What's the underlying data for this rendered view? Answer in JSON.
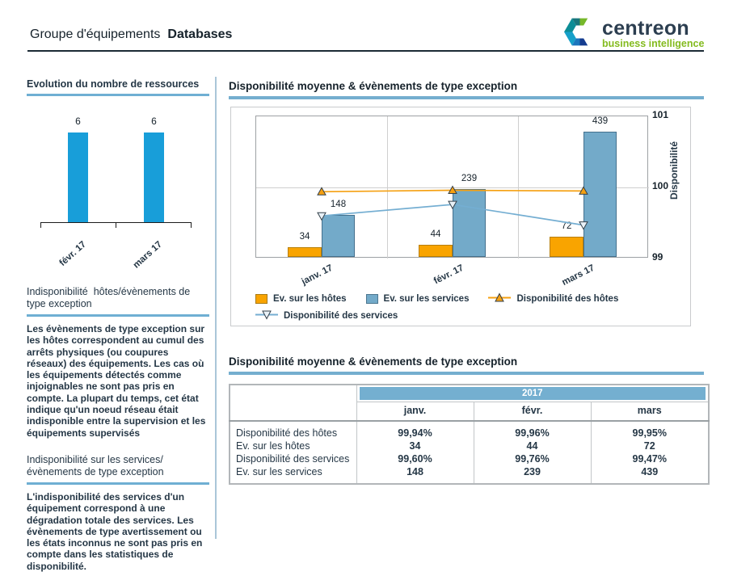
{
  "header": {
    "title_prefix": "Groupe d'équipements",
    "title_emphasis": "Databases",
    "logo": {
      "brand": "centreon",
      "tagline": "business intelligence"
    }
  },
  "colors": {
    "accent_underline": "#74aecf",
    "title_text": "#253746",
    "header_rule": "#1b2a35",
    "column_separator": "#aac6d8",
    "sidebar_bar_blue": "#189ed9",
    "bar_orange": "#f9a400",
    "bar_orange_border": "#b87e00",
    "bar_steel_blue": "#73aac9",
    "bar_steel_blue_border": "#44708d",
    "line_orange": "#f5a011",
    "line_blue": "#74aed2",
    "table_header_bg": "#74afd0",
    "table_header_text": "#ffffff",
    "logo_green": "#84bb1f",
    "logo_dark": "#2c3e50"
  },
  "sidebar": {
    "resources_title": "Evolution du nombre de ressources",
    "sections": [
      {
        "title": "Indisponibilité  hôtes/évènements de type exception",
        "body": "Les évènements de type exception sur les hôtes correspondent au cumul des arrêts physiques (ou coupures réseaux) des équipements. Les cas où les équipements détectés comme injoignables ne sont pas pris en compte. La plupart du temps, cet état indique qu'un noeud réseau était indisponible entre la supervision et les équipements supervisés"
      },
      {
        "title": "Indisponibilité sur les services/ évènements de type exception",
        "body": "L'indisponibilité des services d'un équipement correspond à une dégradation totale des services. Les évènements de type avertissement ou les états inconnus ne sont pas pris en compte dans les statistiques de disponibilité."
      }
    ]
  },
  "main": {
    "chart_title": "Disponibilité moyenne & évènements de type exception",
    "table_title": "Disponibilité moyenne & évènements de type exception",
    "table": {
      "year": "2017",
      "columns": [
        "janv.",
        "févr.",
        "mars"
      ],
      "rows": [
        {
          "label": "Disponibilité des hôtes",
          "values": [
            "99,94%",
            "99,96%",
            "99,95%"
          ]
        },
        {
          "label": "Ev. sur les hôtes",
          "values": [
            "34",
            "44",
            "72"
          ]
        },
        {
          "label": "Disponibilité des services",
          "values": [
            "99,60%",
            "99,76%",
            "99,47%"
          ]
        },
        {
          "label": "Ev. sur les services",
          "values": [
            "148",
            "239",
            "439"
          ]
        }
      ]
    }
  },
  "chart_data": [
    {
      "type": "bar",
      "title": "Evolution du nombre de ressources",
      "categories": [
        "févr. 17",
        "mars 17"
      ],
      "values": [
        6,
        6
      ],
      "ylim": [
        0,
        7
      ],
      "bar_color": "#189ed9",
      "grid": false,
      "legend": "none"
    },
    {
      "type": "bar+line",
      "title": "Disponibilité moyenne & évènements de type exception",
      "categories": [
        "janv. 17",
        "févr. 17",
        "mars 17"
      ],
      "series": [
        {
          "name": "Ev. sur les hôtes",
          "type": "bar",
          "values": [
            34,
            44,
            72
          ],
          "color": "#f9a400",
          "border": "#b87e00"
        },
        {
          "name": "Ev. sur les services",
          "type": "bar",
          "values": [
            148,
            239,
            439
          ],
          "color": "#73aac9",
          "border": "#44708d"
        },
        {
          "name": "Disponibilité des hôtes",
          "type": "line",
          "values": [
            99.94,
            99.96,
            99.95
          ],
          "color": "#f5a011",
          "marker": "triangle-up",
          "marker_fill": "#f5a011"
        },
        {
          "name": "Disponibilité des services",
          "type": "line",
          "values": [
            99.6,
            99.76,
            99.47
          ],
          "color": "#74aed2",
          "marker": "triangle-down",
          "marker_fill": "#e9f1f7"
        }
      ],
      "bar_axis": {
        "range": [
          0,
          500
        ],
        "visible": false
      },
      "right_axis": {
        "label": "Disponibilité",
        "ticks": [
          101,
          100,
          99
        ],
        "range": [
          99,
          101
        ]
      },
      "grid": true,
      "legend_position": "bottom"
    }
  ]
}
